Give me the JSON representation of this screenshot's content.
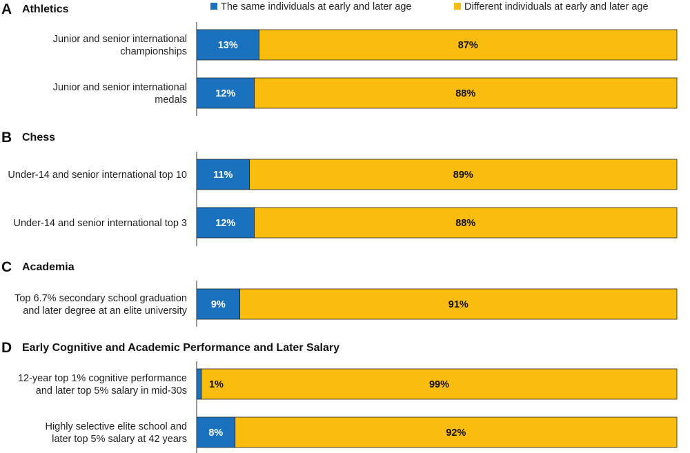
{
  "colors": {
    "same": "#1a72bf",
    "different": "#fbbd0d",
    "axis": "#333333"
  },
  "legend": {
    "same_label": "The same individuals at early and later age",
    "different_label": "Different individuals at early and later age"
  },
  "chart_data": {
    "type": "bar",
    "orientation": "horizontal",
    "stacked": true,
    "percent_scale": [
      0,
      100
    ],
    "series": [
      {
        "name": "The same individuals at early and later age",
        "key": "same"
      },
      {
        "name": "Different individuals at early and later age",
        "key": "different"
      }
    ],
    "panels": [
      {
        "letter": "A",
        "title": "Athletics",
        "rows": [
          {
            "label": [
              "Junior and senior international",
              "championships"
            ],
            "same": 13,
            "different": 87
          },
          {
            "label": [
              "Junior and senior international",
              "medals"
            ],
            "same": 12,
            "different": 88
          }
        ]
      },
      {
        "letter": "B",
        "title": "Chess",
        "rows": [
          {
            "label": [
              "Under-14 and senior international top 10"
            ],
            "same": 11,
            "different": 89
          },
          {
            "label": [
              "Under-14 and senior international top 3"
            ],
            "same": 12,
            "different": 88
          }
        ]
      },
      {
        "letter": "C",
        "title": "Academia",
        "rows": [
          {
            "label": [
              "Top 6.7% secondary school graduation",
              "and later degree at an elite university"
            ],
            "same": 9,
            "different": 91
          }
        ]
      },
      {
        "letter": "D",
        "title": "Early Cognitive and Academic Performance and Later Salary",
        "rows": [
          {
            "label": [
              "12-year top 1% cognitive performance",
              "and later top 5% salary in mid-30s"
            ],
            "same": 1,
            "different": 99
          },
          {
            "label": [
              "Highly selective elite school and",
              "later top 5% salary at 42 years"
            ],
            "same": 8,
            "different": 92
          }
        ]
      }
    ]
  }
}
